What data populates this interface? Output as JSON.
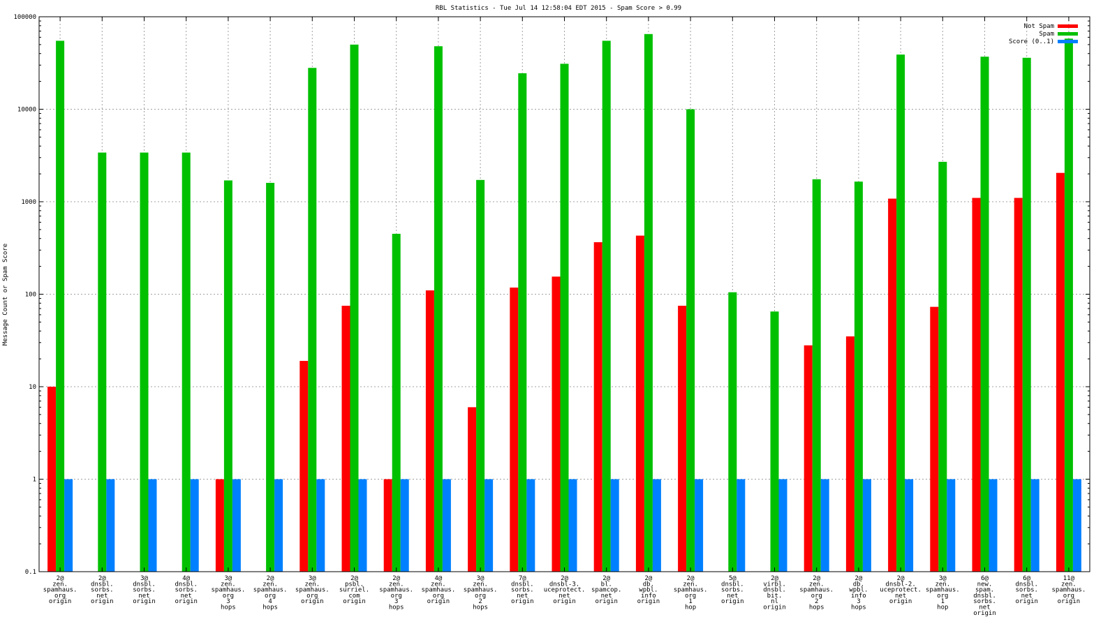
{
  "chart_data": {
    "type": "bar",
    "title": "RBL Statistics - Tue Jul 14 12:58:04 EDT 2015 - Spam Score > 0.99",
    "xlabel": "",
    "ylabel": "Message Count or Spam Score",
    "yscale": "log",
    "ylim": [
      0.1,
      100000
    ],
    "yticks": [
      "0.1",
      "1",
      "10",
      "100",
      "1000",
      "10000",
      "100000"
    ],
    "grid": true,
    "legend_position": "top-right",
    "categories": [
      "2@ zen. spamhaus. org origin",
      "2@ dnsbl. sorbs. net origin",
      "3@ dnsbl. sorbs. net origin",
      "4@ dnsbl. sorbs. net origin",
      "3@ zen. spamhaus. org 3 hops",
      "2@ zen. spamhaus. org 4 hops",
      "3@ zen. spamhaus. org origin",
      "2@ psbl. surriel. com origin",
      "2@ zen. spamhaus. org 3 hops",
      "4@ zen. spamhaus. org origin",
      "3@ zen. spamhaus. org 2 hops",
      "7@ dnsbl. sorbs. net origin",
      "2@ dnsbl-3. uceprotect. net origin",
      "2@ bl. spamcop. net origin",
      "2@ db. wpbl. info origin",
      "2@ zen. spamhaus. org 1 hop",
      "5@ dnsbl. sorbs. net origin",
      "2@ virbl. dnsbl. bit. nl origin",
      "2@ zen. spamhaus. org 2 hops",
      "2@ db. wpbl. info 3 hops",
      "2@ dnsbl-2. uceprotect. net origin",
      "3@ zen. spamhaus. org 1 hop",
      "6@ new. spam. dnsbl. sorbs. net origin",
      "6@ dnsbl. sorbs. net origin",
      "11@ zen. spamhaus. org origin"
    ],
    "series": [
      {
        "name": "Not Spam",
        "color": "#ff0000",
        "values": [
          10,
          null,
          null,
          null,
          1,
          null,
          19,
          75,
          1,
          110,
          6,
          118,
          155,
          365,
          430,
          75,
          null,
          null,
          28,
          35,
          1080,
          73,
          1100,
          1100,
          2050
        ]
      },
      {
        "name": "Spam",
        "color": "#00c000",
        "values": [
          55000,
          3400,
          3400,
          3400,
          1700,
          1600,
          28000,
          50000,
          450,
          48000,
          1720,
          24500,
          31000,
          55000,
          65000,
          10000,
          105,
          65,
          1750,
          1650,
          39000,
          2700,
          37000,
          36000,
          58000
        ]
      },
      {
        "name": "Score (0..1)",
        "color": "#0080ff",
        "values": [
          1,
          1,
          1,
          1,
          1,
          1,
          1,
          1,
          1,
          1,
          1,
          1,
          1,
          1,
          1,
          1,
          1,
          1,
          1,
          1,
          1,
          1,
          1,
          1,
          1
        ]
      }
    ]
  }
}
